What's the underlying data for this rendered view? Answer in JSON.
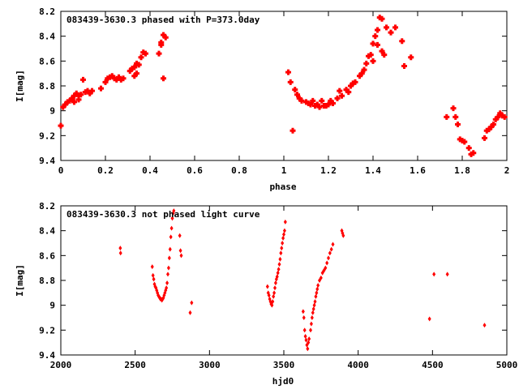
{
  "chart_data": [
    {
      "type": "scatter",
      "title": "083439-3630.3 phased with P=373.0day",
      "xlabel": "phase",
      "ylabel": "I[mag]",
      "xlim": [
        0,
        2
      ],
      "ylim": [
        8.2,
        9.4
      ],
      "y_inverted": true,
      "x_ticks": [
        "0",
        "0.2",
        "0.4",
        "0.6",
        "0.8",
        "1",
        "1.2",
        "1.4",
        "1.6",
        "1.8",
        "2"
      ],
      "y_ticks": [
        "8.2",
        "8.4",
        "8.6",
        "8.8",
        "9",
        "9.2",
        "9.4"
      ],
      "grid": false,
      "color": "#ff0000",
      "marker": "plus-square",
      "points": [
        [
          0.0,
          9.12
        ],
        [
          0.01,
          8.97
        ],
        [
          0.02,
          8.95
        ],
        [
          0.03,
          8.93
        ],
        [
          0.04,
          8.92
        ],
        [
          0.05,
          8.9
        ],
        [
          0.06,
          8.88
        ],
        [
          0.07,
          8.86
        ],
        [
          0.08,
          8.88
        ],
        [
          0.09,
          8.87
        ],
        [
          0.1,
          8.75
        ],
        [
          0.11,
          8.85
        ],
        [
          0.12,
          8.84
        ],
        [
          0.13,
          8.86
        ],
        [
          0.14,
          8.84
        ],
        [
          0.06,
          8.93
        ],
        [
          0.08,
          8.91
        ],
        [
          0.18,
          8.82
        ],
        [
          0.2,
          8.77
        ],
        [
          0.21,
          8.74
        ],
        [
          0.22,
          8.73
        ],
        [
          0.23,
          8.72
        ],
        [
          0.24,
          8.74
        ],
        [
          0.25,
          8.75
        ],
        [
          0.26,
          8.73
        ],
        [
          0.27,
          8.75
        ],
        [
          0.28,
          8.74
        ],
        [
          0.31,
          8.68
        ],
        [
          0.32,
          8.66
        ],
        [
          0.33,
          8.72
        ],
        [
          0.34,
          8.7
        ],
        [
          0.35,
          8.63
        ],
        [
          0.36,
          8.57
        ],
        [
          0.37,
          8.53
        ],
        [
          0.38,
          8.54
        ],
        [
          0.33,
          8.65
        ],
        [
          0.34,
          8.62
        ],
        [
          0.44,
          8.54
        ],
        [
          0.45,
          8.45
        ],
        [
          0.46,
          8.39
        ],
        [
          0.47,
          8.41
        ],
        [
          0.46,
          8.74
        ],
        [
          0.45,
          8.47
        ],
        [
          1.02,
          8.69
        ],
        [
          1.03,
          8.77
        ],
        [
          1.04,
          9.16
        ],
        [
          1.05,
          8.83
        ],
        [
          1.06,
          8.87
        ],
        [
          1.07,
          8.9
        ],
        [
          1.08,
          8.92
        ],
        [
          1.1,
          8.93
        ],
        [
          1.12,
          8.95
        ],
        [
          1.14,
          8.96
        ],
        [
          1.16,
          8.97
        ],
        [
          1.18,
          8.96
        ],
        [
          1.2,
          8.95
        ],
        [
          1.22,
          8.94
        ],
        [
          1.24,
          8.9
        ],
        [
          1.26,
          8.88
        ],
        [
          1.28,
          8.83
        ],
        [
          1.3,
          8.8
        ],
        [
          1.32,
          8.77
        ],
        [
          1.34,
          8.72
        ],
        [
          1.36,
          8.67
        ],
        [
          1.38,
          8.56
        ],
        [
          1.39,
          8.55
        ],
        [
          1.4,
          8.46
        ],
        [
          1.41,
          8.4
        ],
        [
          1.42,
          8.35
        ],
        [
          1.43,
          8.25
        ],
        [
          1.44,
          8.26
        ],
        [
          1.45,
          8.55
        ],
        [
          1.46,
          8.33
        ],
        [
          1.48,
          8.37
        ],
        [
          1.5,
          8.33
        ],
        [
          1.53,
          8.44
        ],
        [
          1.54,
          8.64
        ],
        [
          1.57,
          8.57
        ],
        [
          1.11,
          8.94
        ],
        [
          1.13,
          8.92
        ],
        [
          1.15,
          8.95
        ],
        [
          1.17,
          8.92
        ],
        [
          1.19,
          8.96
        ],
        [
          1.21,
          8.92
        ],
        [
          1.25,
          8.84
        ],
        [
          1.29,
          8.85
        ],
        [
          1.31,
          8.78
        ],
        [
          1.35,
          8.7
        ],
        [
          1.37,
          8.62
        ],
        [
          1.4,
          8.6
        ],
        [
          1.42,
          8.47
        ],
        [
          1.44,
          8.52
        ],
        [
          1.73,
          9.05
        ],
        [
          1.76,
          8.98
        ],
        [
          1.77,
          9.05
        ],
        [
          1.78,
          9.11
        ],
        [
          1.79,
          9.23
        ],
        [
          1.8,
          9.24
        ],
        [
          1.81,
          9.25
        ],
        [
          1.83,
          9.3
        ],
        [
          1.84,
          9.35
        ],
        [
          1.85,
          9.34
        ],
        [
          1.9,
          9.22
        ],
        [
          1.91,
          9.16
        ],
        [
          1.92,
          9.15
        ],
        [
          1.93,
          9.13
        ],
        [
          1.94,
          9.11
        ],
        [
          1.95,
          9.07
        ],
        [
          1.96,
          9.05
        ],
        [
          1.97,
          9.02
        ],
        [
          1.98,
          9.04
        ],
        [
          1.99,
          9.05
        ]
      ]
    },
    {
      "type": "scatter",
      "title": "083439-3630.3 not phased light curve",
      "xlabel": "hjd0",
      "ylabel": "I[mag]",
      "xlim": [
        2000,
        5000
      ],
      "ylim": [
        8.2,
        9.4
      ],
      "y_inverted": true,
      "x_ticks": [
        "2000",
        "2500",
        "3000",
        "3500",
        "4000",
        "4500",
        "5000"
      ],
      "y_ticks": [
        "8.2",
        "8.4",
        "8.6",
        "8.8",
        "9",
        "9.2",
        "9.4"
      ],
      "grid": false,
      "color": "#ff0000",
      "marker": "diamond",
      "points": [
        [
          2400,
          8.54
        ],
        [
          2402,
          8.58
        ],
        [
          2615,
          8.69
        ],
        [
          2620,
          8.76
        ],
        [
          2625,
          8.79
        ],
        [
          2630,
          8.83
        ],
        [
          2635,
          8.85
        ],
        [
          2640,
          8.86
        ],
        [
          2645,
          8.88
        ],
        [
          2650,
          8.9
        ],
        [
          2655,
          8.92
        ],
        [
          2660,
          8.93
        ],
        [
          2665,
          8.94
        ],
        [
          2670,
          8.95
        ],
        [
          2675,
          8.95
        ],
        [
          2680,
          8.96
        ],
        [
          2685,
          8.95
        ],
        [
          2690,
          8.94
        ],
        [
          2695,
          8.92
        ],
        [
          2700,
          8.9
        ],
        [
          2705,
          8.88
        ],
        [
          2710,
          8.86
        ],
        [
          2715,
          8.82
        ],
        [
          2720,
          8.75
        ],
        [
          2725,
          8.7
        ],
        [
          2730,
          8.62
        ],
        [
          2735,
          8.55
        ],
        [
          2740,
          8.45
        ],
        [
          2745,
          8.38
        ],
        [
          2750,
          8.3
        ],
        [
          2755,
          8.26
        ],
        [
          2760,
          8.24
        ],
        [
          2800,
          8.44
        ],
        [
          2805,
          8.56
        ],
        [
          2810,
          8.6
        ],
        [
          2870,
          9.06
        ],
        [
          2880,
          8.98
        ],
        [
          3390,
          8.85
        ],
        [
          3395,
          8.9
        ],
        [
          3400,
          8.92
        ],
        [
          3405,
          8.95
        ],
        [
          3410,
          8.97
        ],
        [
          3415,
          8.99
        ],
        [
          3420,
          9.0
        ],
        [
          3425,
          8.97
        ],
        [
          3430,
          8.93
        ],
        [
          3435,
          8.9
        ],
        [
          3440,
          8.86
        ],
        [
          3445,
          8.82
        ],
        [
          3450,
          8.79
        ],
        [
          3455,
          8.77
        ],
        [
          3460,
          8.74
        ],
        [
          3465,
          8.71
        ],
        [
          3470,
          8.67
        ],
        [
          3475,
          8.63
        ],
        [
          3480,
          8.58
        ],
        [
          3485,
          8.54
        ],
        [
          3490,
          8.5
        ],
        [
          3495,
          8.46
        ],
        [
          3500,
          8.43
        ],
        [
          3505,
          8.4
        ],
        [
          3510,
          8.33
        ],
        [
          3630,
          9.05
        ],
        [
          3635,
          9.1
        ],
        [
          3640,
          9.2
        ],
        [
          3645,
          9.25
        ],
        [
          3650,
          9.28
        ],
        [
          3655,
          9.32
        ],
        [
          3660,
          9.35
        ],
        [
          3665,
          9.3
        ],
        [
          3670,
          9.27
        ],
        [
          3680,
          9.2
        ],
        [
          3685,
          9.15
        ],
        [
          3690,
          9.1
        ],
        [
          3695,
          9.06
        ],
        [
          3700,
          9.03
        ],
        [
          3705,
          9.0
        ],
        [
          3710,
          8.97
        ],
        [
          3715,
          8.93
        ],
        [
          3720,
          8.9
        ],
        [
          3725,
          8.87
        ],
        [
          3730,
          8.84
        ],
        [
          3740,
          8.8
        ],
        [
          3750,
          8.78
        ],
        [
          3760,
          8.74
        ],
        [
          3770,
          8.72
        ],
        [
          3780,
          8.7
        ],
        [
          3790,
          8.66
        ],
        [
          3800,
          8.62
        ],
        [
          3810,
          8.58
        ],
        [
          3820,
          8.55
        ],
        [
          3830,
          8.51
        ],
        [
          3890,
          8.4
        ],
        [
          3895,
          8.42
        ],
        [
          3900,
          8.44
        ],
        [
          4480,
          9.11
        ],
        [
          4510,
          8.75
        ],
        [
          4600,
          8.75
        ],
        [
          4850,
          9.16
        ]
      ]
    }
  ]
}
